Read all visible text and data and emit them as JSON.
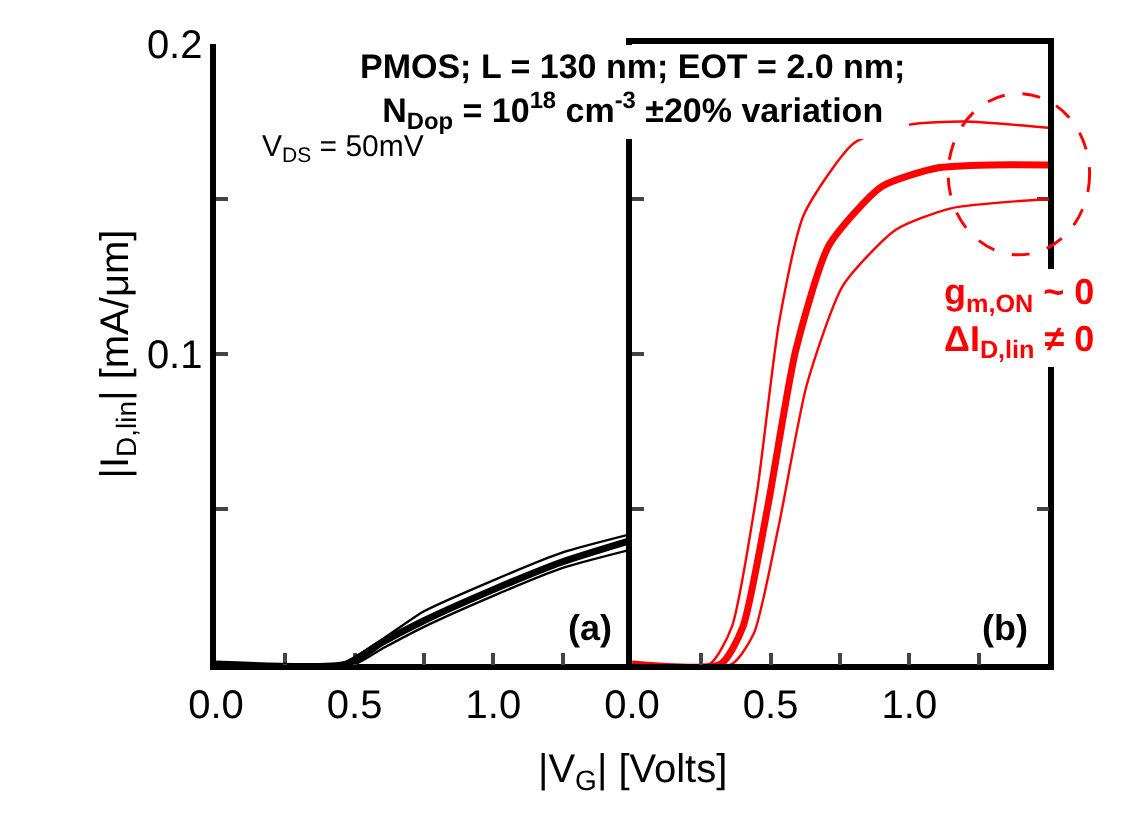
{
  "chart_data": [
    {
      "type": "line",
      "title": "PMOS; L = 130 nm; EOT = 2.0 nm;\nN$_{Dop}$ = 10$^{18}$ cm$^{-3}$ ±20% variation",
      "xlabel": "|V$_{G}$| [Volts]",
      "ylabel": "|I$_{D,lin}$| [mA/μm]",
      "xlim": [
        0,
        1.5
      ],
      "xticks": [
        {
          "value": 0,
          "label": "0.0"
        },
        {
          "value": 0.25,
          "label": null
        },
        {
          "value": 0.5,
          "label": "0.5"
        },
        {
          "value": 0.75,
          "label": null
        },
        {
          "value": 1.0,
          "label": "1.0"
        },
        {
          "value": 1.25,
          "label": null
        }
      ],
      "ylim": [
        0,
        0.2
      ],
      "yticks": [
        {
          "value": 0,
          "label": null
        },
        {
          "value": 0.05,
          "label": null
        },
        {
          "value": 0.1,
          "label": "0.1"
        },
        {
          "value": 0.15,
          "label": null
        },
        {
          "value": 0.2,
          "label": "0.2"
        }
      ],
      "annotations": [
        "V$_{DS}$ = 50mV",
        "(a)"
      ],
      "series": [
        {
          "color": "#000000",
          "x": [
            0,
            0.45,
            0.6,
            0.75,
            1.0,
            1.25,
            1.5
          ],
          "values": [
            0,
            0,
            0.008,
            0.017,
            0.027,
            0.036,
            0.042
          ]
        },
        {
          "color": "#000000",
          "x": [
            0,
            0.47,
            0.6,
            0.75,
            1.0,
            1.25,
            1.5
          ],
          "values": [
            0,
            0,
            0.007,
            0.014,
            0.024,
            0.033,
            0.04
          ]
        },
        {
          "color": "#000000",
          "x": [
            0,
            0.5,
            0.6,
            0.75,
            1.0,
            1.25,
            1.5
          ],
          "values": [
            0,
            0,
            0.005,
            0.012,
            0.022,
            0.031,
            0.037
          ]
        }
      ]
    },
    {
      "type": "line",
      "tick_labels": "x",
      "xlim": [
        0,
        1.5
      ],
      "xticks": [
        {
          "value": 0,
          "label": "0.0"
        },
        {
          "value": 0.25,
          "label": null
        },
        {
          "value": 0.5,
          "label": "0.5"
        },
        {
          "value": 0.75,
          "label": null
        },
        {
          "value": 1.0,
          "label": "1.0"
        },
        {
          "value": 1.25,
          "label": null
        }
      ],
      "ylim": [
        0,
        0.2
      ],
      "yticks": [
        {
          "value": 0,
          "label": null
        },
        {
          "value": 0.05,
          "label": null
        },
        {
          "value": 0.1,
          "label": null
        },
        {
          "value": 0.15,
          "label": null
        },
        {
          "value": 0.2,
          "label": null
        }
      ],
      "annotations": [
        "(b)",
        "g$_{m,ON}$ ~ 0\nΔI$_{D,lin}$ ≠ 0"
      ],
      "series": [
        {
          "color": "#ff0000",
          "x": [
            0,
            0.28,
            0.36,
            0.45,
            0.53,
            0.62,
            0.8,
            1.0,
            1.2,
            1.5
          ],
          "values": [
            0,
            0,
            0.012,
            0.055,
            0.11,
            0.145,
            0.168,
            0.174,
            0.175,
            0.173
          ]
        },
        {
          "color": "#ff0000",
          "x": [
            0,
            0.32,
            0.4,
            0.49,
            0.59,
            0.71,
            0.9,
            1.1,
            1.3,
            1.5
          ],
          "values": [
            0,
            0,
            0.012,
            0.051,
            0.101,
            0.135,
            0.154,
            0.16,
            0.161,
            0.161
          ]
        },
        {
          "color": "#ff0000",
          "x": [
            0,
            0.36,
            0.44,
            0.53,
            0.63,
            0.76,
            0.95,
            1.15,
            1.5
          ],
          "values": [
            0,
            0,
            0.01,
            0.045,
            0.09,
            0.122,
            0.14,
            0.147,
            0.15
          ]
        }
      ]
    }
  ]
}
